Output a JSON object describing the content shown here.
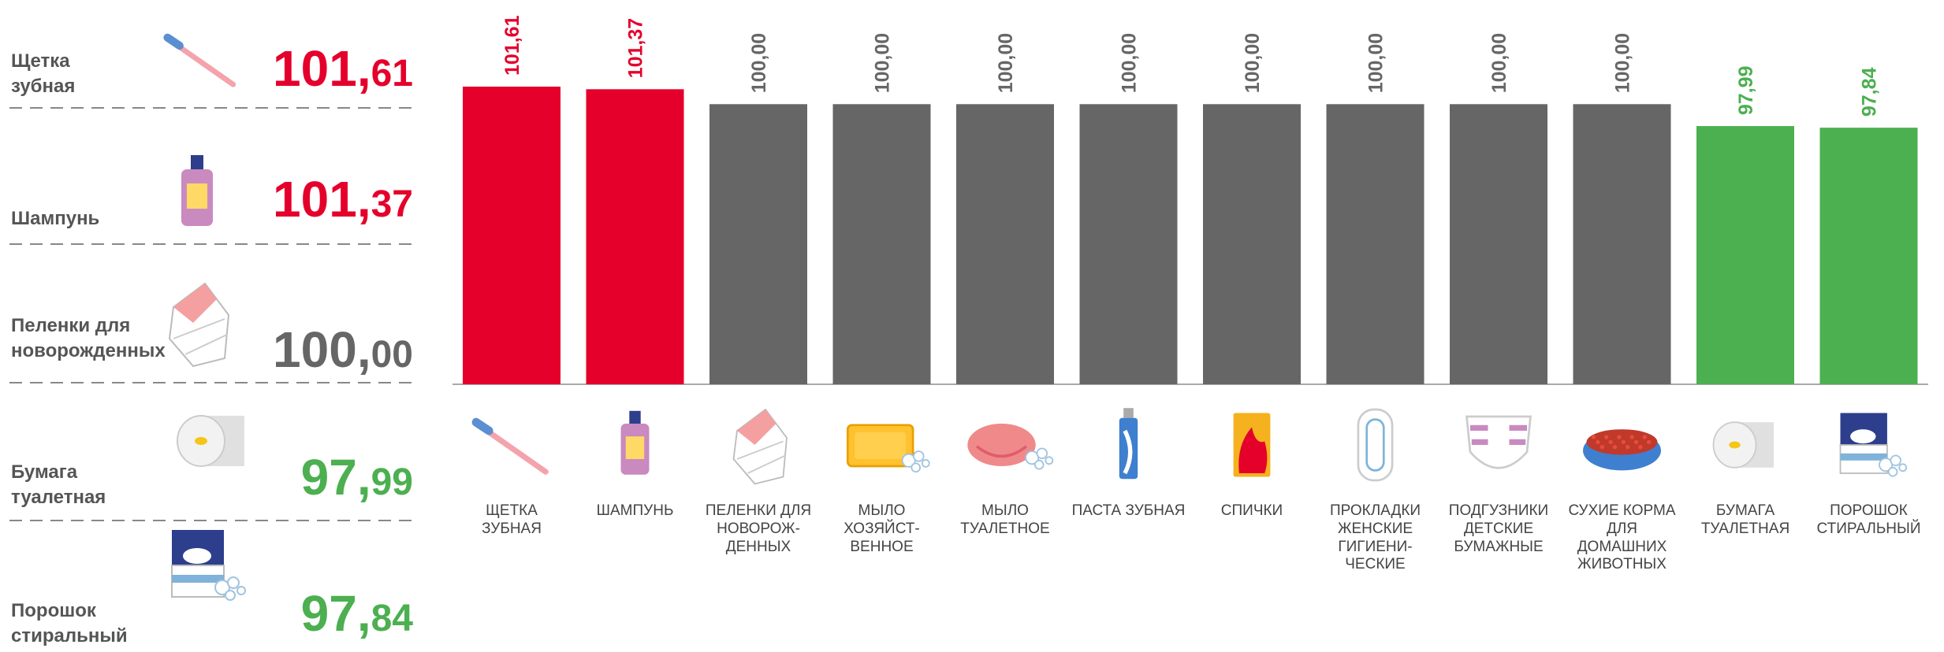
{
  "highlights": [
    {
      "name": "Щетка\nзубная",
      "value": "101,61",
      "color": "#e4002b"
    },
    {
      "name": "Шампунь",
      "value": "101,37",
      "color": "#e4002b"
    },
    {
      "name": "Пеленки для\nноворожденных",
      "value": "100,00",
      "color": "#666666"
    },
    {
      "name": "Бумага\nтуалетная",
      "value": "97,99",
      "color": "#4caf50"
    },
    {
      "name": "Порошок\nстиральный",
      "value": "97,84",
      "color": "#4caf50"
    }
  ],
  "chart_data": {
    "type": "bar",
    "categories": [
      "ЩЕТКА\nЗУБНАЯ",
      "ШАМПУНЬ",
      "ПЕЛЕНКИ ДЛЯ\nНОВОРОЖ-\nДЕННЫХ",
      "МЫЛО\nХОЗЯЙСТ-\nВЕННОЕ",
      "МЫЛО\nТУАЛЕТНОЕ",
      "ПАСТА ЗУБНАЯ",
      "СПИЧКИ",
      "ПРОКЛАДКИ\nЖЕНСКИЕ\nГИГИЕНИ-\nЧЕСКИЕ",
      "ПОДГУЗНИКИ\nДЕТСКИЕ\nБУМАЖНЫЕ",
      "СУХИЕ КОРМА\nДЛЯ\nДОМАШНИХ\nЖИВОТНЫХ",
      "БУМАГА\nТУАЛЕТНАЯ",
      "ПОРОШОК\nСТИРАЛЬНЫЙ"
    ],
    "values": [
      101.61,
      101.37,
      100,
      100,
      100,
      100,
      100,
      100,
      100,
      100,
      97.99,
      97.84
    ],
    "value_labels": [
      "101,61",
      "101,37",
      "100,00",
      "100,00",
      "100,00",
      "100,00",
      "100,00",
      "100,00",
      "100,00",
      "100,00",
      "97,99",
      "97,84"
    ],
    "colors": [
      "#e4002b",
      "#e4002b",
      "#666666",
      "#666666",
      "#666666",
      "#666666",
      "#666666",
      "#666666",
      "#666666",
      "#666666",
      "#4caf50",
      "#4caf50"
    ],
    "ylim": [
      74.3,
      102
    ]
  }
}
